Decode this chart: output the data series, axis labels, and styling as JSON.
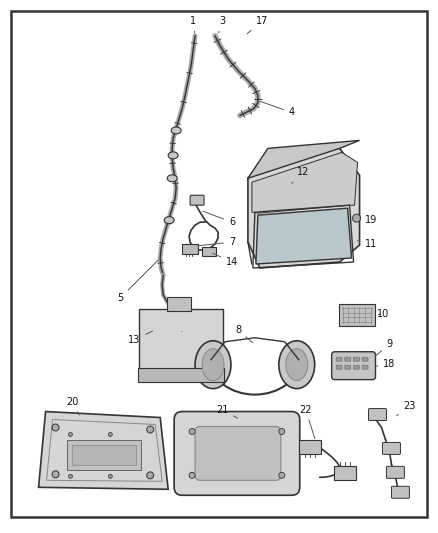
{
  "bg_color": "#ffffff",
  "border_color": "#1a1a1a",
  "fig_width": 4.38,
  "fig_height": 5.33,
  "line_color": "#555555",
  "dark": "#333333"
}
